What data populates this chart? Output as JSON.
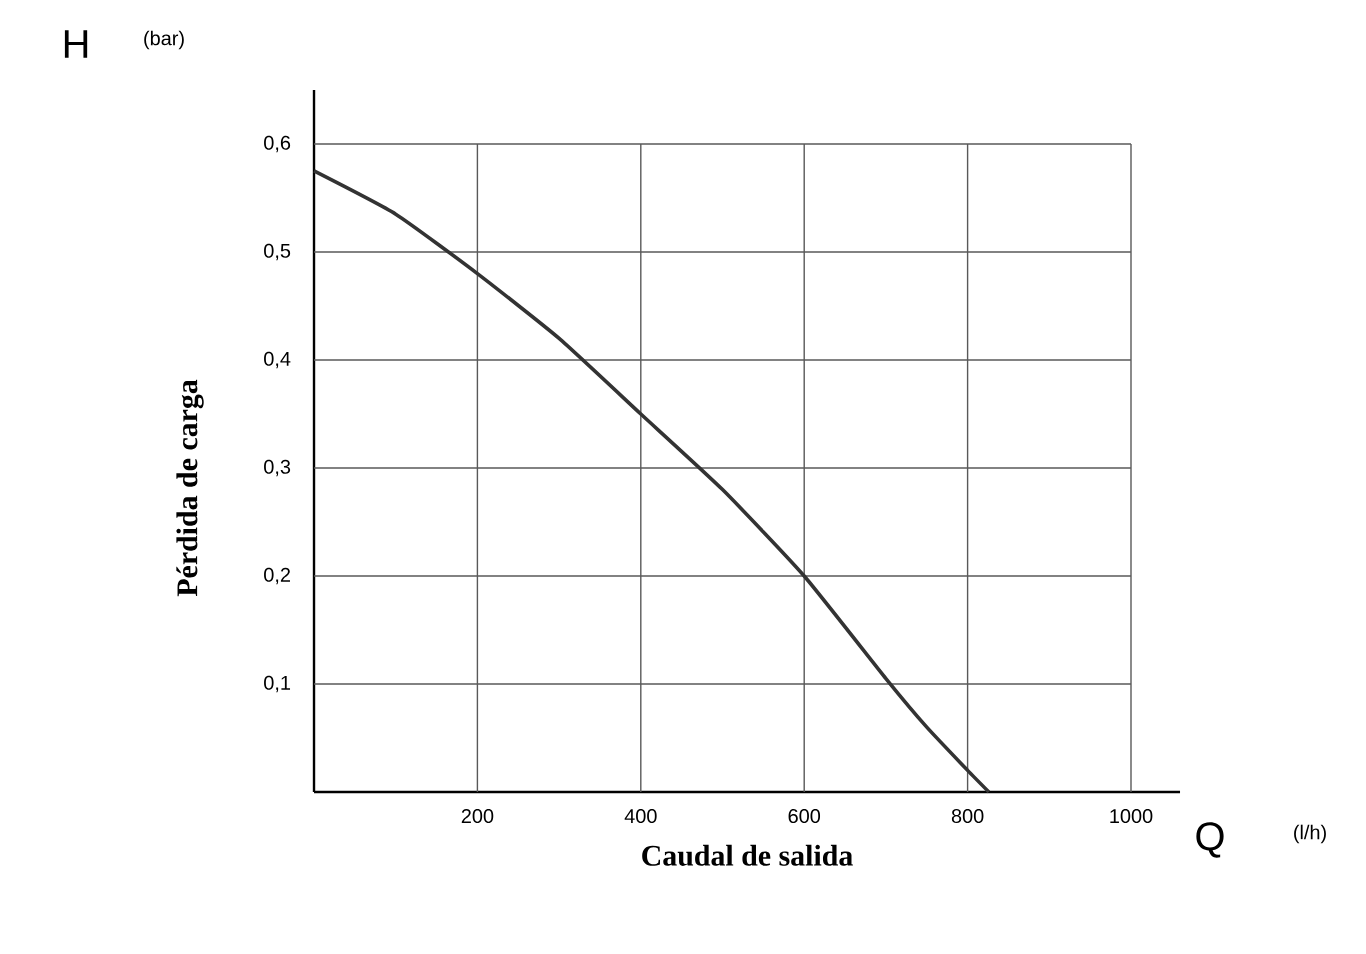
{
  "chart_data": {
    "type": "line",
    "xlabel": "Caudal de salida",
    "ylabel": "Pérdida de carga",
    "annotations": [
      "H",
      "(bar)",
      "Q",
      "(l/h)"
    ],
    "x": [
      0,
      100,
      200,
      300,
      400,
      500,
      600,
      700,
      750,
      800,
      826
    ],
    "series": [
      {
        "color": "#333333",
        "values": [
          0.575,
          0.535,
          0.48,
          0.42,
          0.35,
          0.28,
          0.2,
          0.105,
          0.06,
          0.02,
          0
        ]
      }
    ],
    "xlim": [
      0,
      1060
    ],
    "ylim": [
      0,
      0.65
    ],
    "xticks": [
      200,
      400,
      600,
      800,
      1000
    ],
    "yticks": [
      {
        "value": 0.1,
        "label": "0,1"
      },
      {
        "value": 0.2,
        "label": "0,2"
      },
      {
        "value": 0.3,
        "label": "0,3"
      },
      {
        "value": 0.4,
        "label": "0,4"
      },
      {
        "value": 0.5,
        "label": "0,5"
      },
      {
        "value": 0.6,
        "label": "0,6"
      }
    ],
    "grid": true
  }
}
